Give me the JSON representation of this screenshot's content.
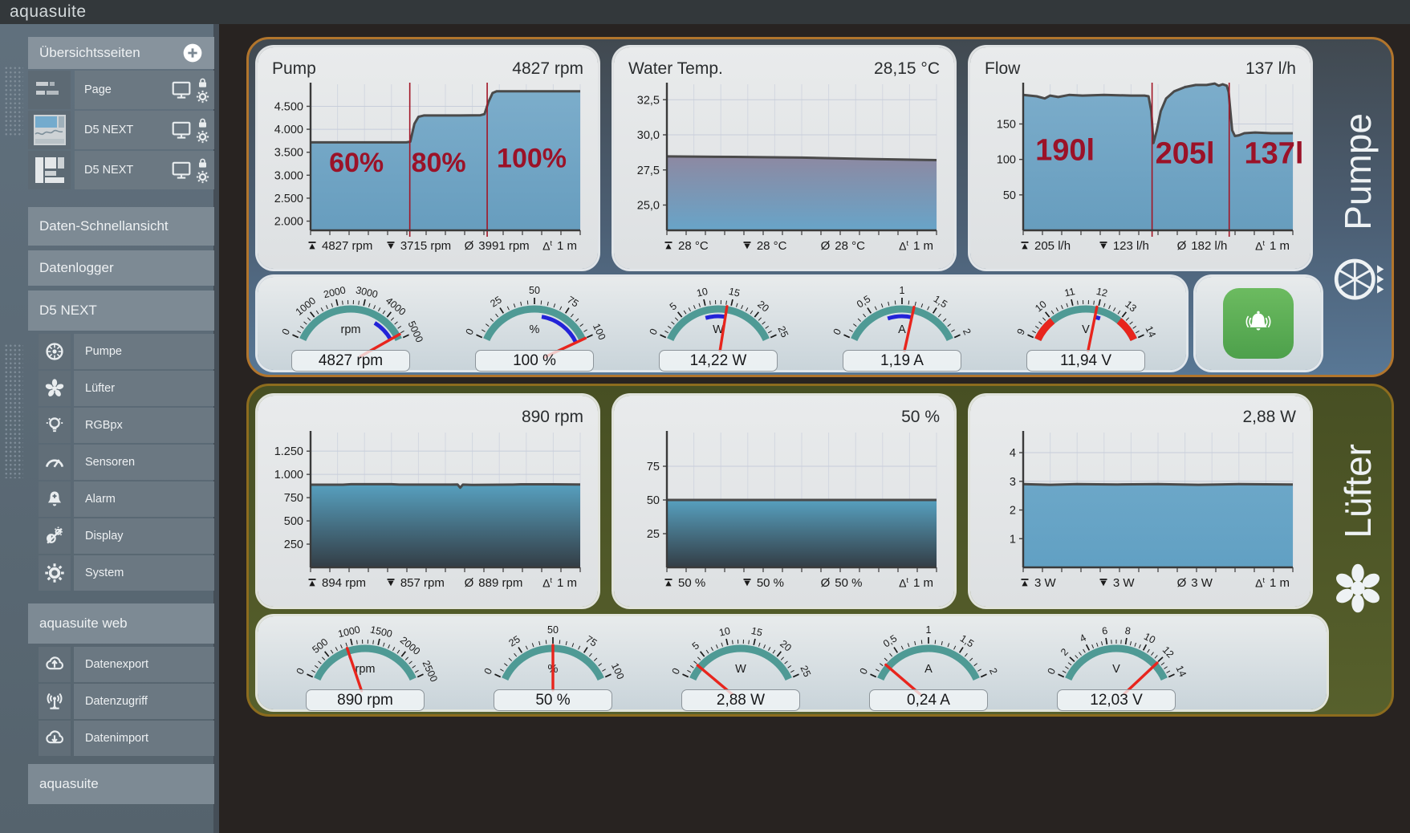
{
  "app": {
    "title": "aquasuite"
  },
  "sidebar": {
    "overview_header": "Übersichtsseiten",
    "pages": [
      "Page",
      "D5 NEXT",
      "D5 NEXT"
    ],
    "quick_items": [
      "Daten-Schnellansicht",
      "Datenlogger"
    ],
    "device_section": "D5 NEXT",
    "device_items": [
      "Pumpe",
      "Lüfter",
      "RGBpx",
      "Sensoren",
      "Alarm",
      "Display",
      "System"
    ],
    "web_section": "aquasuite web",
    "web_items": [
      "Datenexport",
      "Datenzugriff",
      "Datenimport"
    ],
    "footer_section": "aquasuite"
  },
  "panels": {
    "pump": {
      "label": "Pumpe"
    },
    "fan": {
      "label": "Lüfter"
    }
  },
  "colors": {
    "accent_teal": "#4f9a95",
    "needle_red": "#e8251d",
    "range_blue": "#2323d8",
    "annotation_red": "#9b1228",
    "pump_border": "#b2752c",
    "fan_border": "#8d6c1e",
    "alarm_green": "#5cae54"
  },
  "chart_data": [
    {
      "type": "area",
      "title": "Pump",
      "value": "4827 rpm",
      "ylim": [
        1800,
        4980
      ],
      "yticks": [
        {
          "v": 2000,
          "l": "2.000"
        },
        {
          "v": 2500,
          "l": "2.500"
        },
        {
          "v": 3000,
          "l": "3.000"
        },
        {
          "v": 3500,
          "l": "3.500"
        },
        {
          "v": 4000,
          "l": "4.000"
        },
        {
          "v": 4500,
          "l": "4.500"
        }
      ],
      "points": [
        [
          0,
          3715
        ],
        [
          0.355,
          3715
        ],
        [
          0.37,
          3730
        ],
        [
          0.385,
          4120
        ],
        [
          0.4,
          4270
        ],
        [
          0.42,
          4300
        ],
        [
          0.555,
          4300
        ],
        [
          0.63,
          4305
        ],
        [
          0.645,
          4330
        ],
        [
          0.66,
          4600
        ],
        [
          0.675,
          4790
        ],
        [
          0.69,
          4827
        ],
        [
          1,
          4827
        ]
      ],
      "vlines": [
        0.368,
        0.655
      ],
      "annotations": [
        {
          "x": 0.17,
          "y": 0.6,
          "text": "60%"
        },
        {
          "x": 0.475,
          "y": 0.6,
          "text": "80%"
        },
        {
          "x": 0.82,
          "y": 0.57,
          "text": "100%"
        }
      ],
      "ann_size": 34,
      "fill": {
        "top": "#7cadcb",
        "bottom": "#679dbe"
      },
      "stats": {
        "max": "4827 rpm",
        "min": "3715 rpm",
        "avg": "3991 rpm",
        "time": "1 m"
      }
    },
    {
      "type": "area",
      "title": "Water Temp.",
      "value": "28,15 °C",
      "ylim": [
        23.2,
        33.6
      ],
      "yticks": [
        {
          "v": 25,
          "l": "25,0"
        },
        {
          "v": 27.5,
          "l": "27,5"
        },
        {
          "v": 30,
          "l": "30,0"
        },
        {
          "v": 32.5,
          "l": "32,5"
        }
      ],
      "points": [
        [
          0,
          28.46
        ],
        [
          0.25,
          28.43
        ],
        [
          0.5,
          28.38
        ],
        [
          0.75,
          28.28
        ],
        [
          1,
          28.2
        ]
      ],
      "vlines": [],
      "annotations": [],
      "ann_size": 0,
      "fill": {
        "top": "#8d89a2",
        "bottom": "#68a4c8"
      },
      "stats": {
        "max": "28 °C",
        "min": "28 °C",
        "avg": "28 °C",
        "time": "1 m"
      }
    },
    {
      "type": "area",
      "title": "Flow",
      "value": "137 l/h",
      "ylim": [
        0,
        206
      ],
      "yticks": [
        {
          "v": 50,
          "l": "50"
        },
        {
          "v": 100,
          "l": "100"
        },
        {
          "v": 150,
          "l": "150"
        }
      ],
      "points": [
        [
          0,
          191
        ],
        [
          0.05,
          189
        ],
        [
          0.08,
          186
        ],
        [
          0.1,
          190
        ],
        [
          0.13,
          188
        ],
        [
          0.17,
          191
        ],
        [
          0.22,
          190
        ],
        [
          0.3,
          191
        ],
        [
          0.4,
          190
        ],
        [
          0.45,
          190
        ],
        [
          0.465,
          189
        ],
        [
          0.475,
          168
        ],
        [
          0.483,
          123
        ],
        [
          0.495,
          140
        ],
        [
          0.51,
          168
        ],
        [
          0.53,
          186
        ],
        [
          0.56,
          196
        ],
        [
          0.6,
          202
        ],
        [
          0.64,
          205
        ],
        [
          0.68,
          205
        ],
        [
          0.71,
          207
        ],
        [
          0.725,
          204
        ],
        [
          0.74,
          206
        ],
        [
          0.755,
          204
        ],
        [
          0.762,
          195
        ],
        [
          0.775,
          141
        ],
        [
          0.785,
          133
        ],
        [
          0.8,
          134
        ],
        [
          0.82,
          137
        ],
        [
          0.86,
          138
        ],
        [
          0.92,
          137
        ],
        [
          1,
          137
        ]
      ],
      "vlines": [
        0.478,
        0.764
      ],
      "annotations": [
        {
          "x": 0.155,
          "y": 0.52,
          "text": "190l"
        },
        {
          "x": 0.6,
          "y": 0.54,
          "text": "205l"
        },
        {
          "x": 0.93,
          "y": 0.54,
          "text": "137l"
        }
      ],
      "ann_size": 38,
      "fill": {
        "top": "#7cadcb",
        "bottom": "#679dbe"
      },
      "stats": {
        "max": "205 l/h",
        "min": "123 l/h",
        "avg": "182 l/h",
        "time": "1 m"
      }
    },
    {
      "type": "area",
      "title": "",
      "value": "890 rpm",
      "ylim": [
        0,
        1450
      ],
      "yticks": [
        {
          "v": 250,
          "l": "250"
        },
        {
          "v": 500,
          "l": "500"
        },
        {
          "v": 750,
          "l": "750"
        },
        {
          "v": 1000,
          "l": "1.000"
        },
        {
          "v": 1250,
          "l": "1.250"
        }
      ],
      "points": [
        [
          0,
          889
        ],
        [
          0.12,
          889
        ],
        [
          0.15,
          894
        ],
        [
          0.3,
          894
        ],
        [
          0.33,
          890
        ],
        [
          0.52,
          890
        ],
        [
          0.545,
          892
        ],
        [
          0.555,
          857
        ],
        [
          0.565,
          890
        ],
        [
          0.6,
          886
        ],
        [
          0.75,
          890
        ],
        [
          0.78,
          893
        ],
        [
          0.9,
          893
        ],
        [
          1,
          891
        ]
      ],
      "vlines": [],
      "annotations": [],
      "ann_size": 0,
      "fill": {
        "top": "#57a0bf",
        "bottom": "#333d45"
      },
      "stats": {
        "max": "894 rpm",
        "min": "857 rpm",
        "avg": "889 rpm",
        "time": "1 m"
      }
    },
    {
      "type": "area",
      "title": "",
      "value": "50 %",
      "ylim": [
        0,
        100
      ],
      "yticks": [
        {
          "v": 25,
          "l": "25"
        },
        {
          "v": 50,
          "l": "50"
        },
        {
          "v": 75,
          "l": "75"
        }
      ],
      "points": [
        [
          0,
          50
        ],
        [
          0.5,
          50
        ],
        [
          1,
          50
        ]
      ],
      "vlines": [],
      "annotations": [],
      "ann_size": 0,
      "fill": {
        "top": "#57a0bf",
        "bottom": "#333d45"
      },
      "stats": {
        "max": "50 %",
        "min": "50 %",
        "avg": "50 %",
        "time": "1 m"
      }
    },
    {
      "type": "area",
      "title": "",
      "value": "2,88 W",
      "ylim": [
        0,
        4.7
      ],
      "yticks": [
        {
          "v": 1,
          "l": "1"
        },
        {
          "v": 2,
          "l": "2"
        },
        {
          "v": 3,
          "l": "3"
        },
        {
          "v": 4,
          "l": "4"
        }
      ],
      "points": [
        [
          0,
          2.9
        ],
        [
          0.1,
          2.88
        ],
        [
          0.2,
          2.9
        ],
        [
          0.35,
          2.89
        ],
        [
          0.5,
          2.9
        ],
        [
          0.65,
          2.88
        ],
        [
          0.8,
          2.9
        ],
        [
          1,
          2.89
        ]
      ],
      "vlines": [],
      "annotations": [],
      "ann_size": 0,
      "fill": {
        "top": "#6ca7c8",
        "bottom": "#61a0c3"
      },
      "stats": {
        "max": "3 W",
        "min": "3 W",
        "avg": "3 W",
        "time": "1 m"
      }
    }
  ],
  "gauges": [
    {
      "unit": "rpm",
      "min": 0,
      "max": 5000,
      "majors": [
        [
          0,
          "0"
        ],
        [
          1000,
          "1000"
        ],
        [
          2000,
          "2000"
        ],
        [
          3000,
          "3000"
        ],
        [
          4000,
          "4000"
        ],
        [
          5000,
          "5000"
        ]
      ],
      "minors": 4,
      "value": 4827,
      "label": "4827 rpm",
      "segments": [
        {
          "from": 3715,
          "to": 4827,
          "color": "#2323d8",
          "pos": "inner"
        }
      ]
    },
    {
      "unit": "%",
      "min": 0,
      "max": 100,
      "majors": [
        [
          0,
          "0"
        ],
        [
          25,
          "25"
        ],
        [
          50,
          "50"
        ],
        [
          75,
          "75"
        ],
        [
          100,
          "100"
        ]
      ],
      "minors": 4,
      "value": 100,
      "label": "100 %",
      "segments": [
        {
          "from": 57,
          "to": 100,
          "color": "#2323d8",
          "pos": "inner"
        }
      ]
    },
    {
      "unit": "W",
      "min": 0,
      "max": 25,
      "majors": [
        [
          0,
          "0"
        ],
        [
          5,
          "5"
        ],
        [
          10,
          "10"
        ],
        [
          15,
          "15"
        ],
        [
          20,
          "20"
        ],
        [
          25,
          "25"
        ]
      ],
      "minors": 4,
      "value": 14.22,
      "label": "14,22 W",
      "segments": [
        {
          "from": 9.4,
          "to": 14.3,
          "color": "#2323d8",
          "pos": "inner"
        }
      ]
    },
    {
      "unit": "A",
      "min": 0,
      "max": 2,
      "majors": [
        [
          0,
          "0"
        ],
        [
          0.5,
          "0,5"
        ],
        [
          1,
          "1"
        ],
        [
          1.5,
          "1,5"
        ],
        [
          2,
          "2"
        ]
      ],
      "minors": 4,
      "value": 1.19,
      "label": "1,19 A",
      "segments": [
        {
          "from": 0.72,
          "to": 1.2,
          "color": "#2323d8",
          "pos": "inner"
        }
      ]
    },
    {
      "unit": "V",
      "min": 9,
      "max": 14,
      "majors": [
        [
          9,
          "9"
        ],
        [
          10,
          "10"
        ],
        [
          11,
          "11"
        ],
        [
          12,
          "12"
        ],
        [
          13,
          "13"
        ],
        [
          14,
          "14"
        ]
      ],
      "minors": 4,
      "value": 11.94,
      "label": "11,94 V",
      "segments": [
        {
          "from": 9,
          "to": 10,
          "color": "#e8251d",
          "pos": "main"
        },
        {
          "from": 13,
          "to": 14,
          "color": "#e8251d",
          "pos": "main"
        },
        {
          "from": 11.95,
          "to": 12.2,
          "color": "#2323d8",
          "pos": "inner"
        }
      ]
    },
    {
      "unit": "rpm",
      "min": 0,
      "max": 2500,
      "majors": [
        [
          0,
          "0"
        ],
        [
          500,
          "500"
        ],
        [
          1000,
          "1000"
        ],
        [
          1500,
          "1500"
        ],
        [
          2000,
          "2000"
        ],
        [
          2500,
          "2500"
        ]
      ],
      "minors": 4,
      "value": 890,
      "label": "890 rpm",
      "segments": [
        {
          "from": 857,
          "to": 894,
          "color": "#2323d8",
          "pos": "inner"
        }
      ]
    },
    {
      "unit": "%",
      "min": 0,
      "max": 100,
      "majors": [
        [
          0,
          "0"
        ],
        [
          25,
          "25"
        ],
        [
          50,
          "50"
        ],
        [
          75,
          "75"
        ],
        [
          100,
          "100"
        ]
      ],
      "minors": 4,
      "value": 50,
      "label": "50 %",
      "segments": []
    },
    {
      "unit": "W",
      "min": 0,
      "max": 25,
      "majors": [
        [
          0,
          "0"
        ],
        [
          5,
          "5"
        ],
        [
          10,
          "10"
        ],
        [
          15,
          "15"
        ],
        [
          20,
          "20"
        ],
        [
          25,
          "25"
        ]
      ],
      "minors": 4,
      "value": 2.88,
      "label": "2,88 W",
      "segments": []
    },
    {
      "unit": "A",
      "min": 0,
      "max": 2,
      "majors": [
        [
          0,
          "0"
        ],
        [
          0.5,
          "0,5"
        ],
        [
          1,
          "1"
        ],
        [
          1.5,
          "1,5"
        ],
        [
          2,
          "2"
        ]
      ],
      "minors": 4,
      "value": 0.24,
      "label": "0,24 A",
      "segments": []
    },
    {
      "unit": "V",
      "min": 0,
      "max": 14,
      "majors": [
        [
          0,
          "0"
        ],
        [
          2,
          "2"
        ],
        [
          4,
          "4"
        ],
        [
          6,
          "6"
        ],
        [
          8,
          "8"
        ],
        [
          10,
          "10"
        ],
        [
          12,
          "12"
        ],
        [
          14,
          "14"
        ]
      ],
      "minors": 3,
      "value": 12.03,
      "label": "12,03 V",
      "segments": [
        {
          "from": 11.9,
          "to": 12.2,
          "color": "#2323d8",
          "pos": "inner"
        }
      ]
    }
  ]
}
